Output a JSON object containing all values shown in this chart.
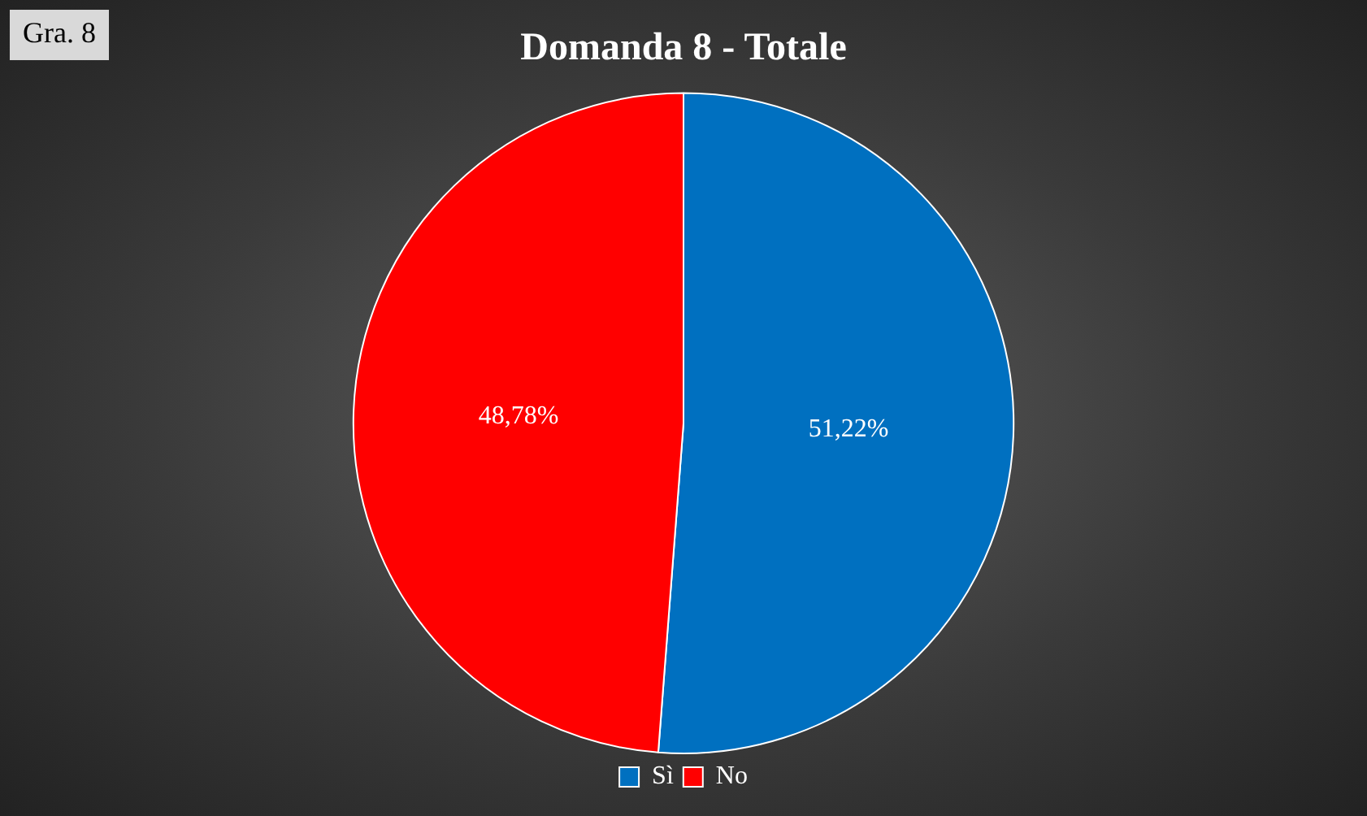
{
  "chart_data": {
    "type": "pie",
    "title": "Domanda 8 - Totale",
    "categories": [
      "Sì",
      "No"
    ],
    "values": [
      51.22,
      48.78
    ],
    "colors": [
      "#0070c0",
      "#ff0000"
    ],
    "value_labels": [
      "51,22%",
      "48,78%"
    ],
    "legend": "bottom",
    "annotations": [
      "Gra. 8"
    ]
  }
}
